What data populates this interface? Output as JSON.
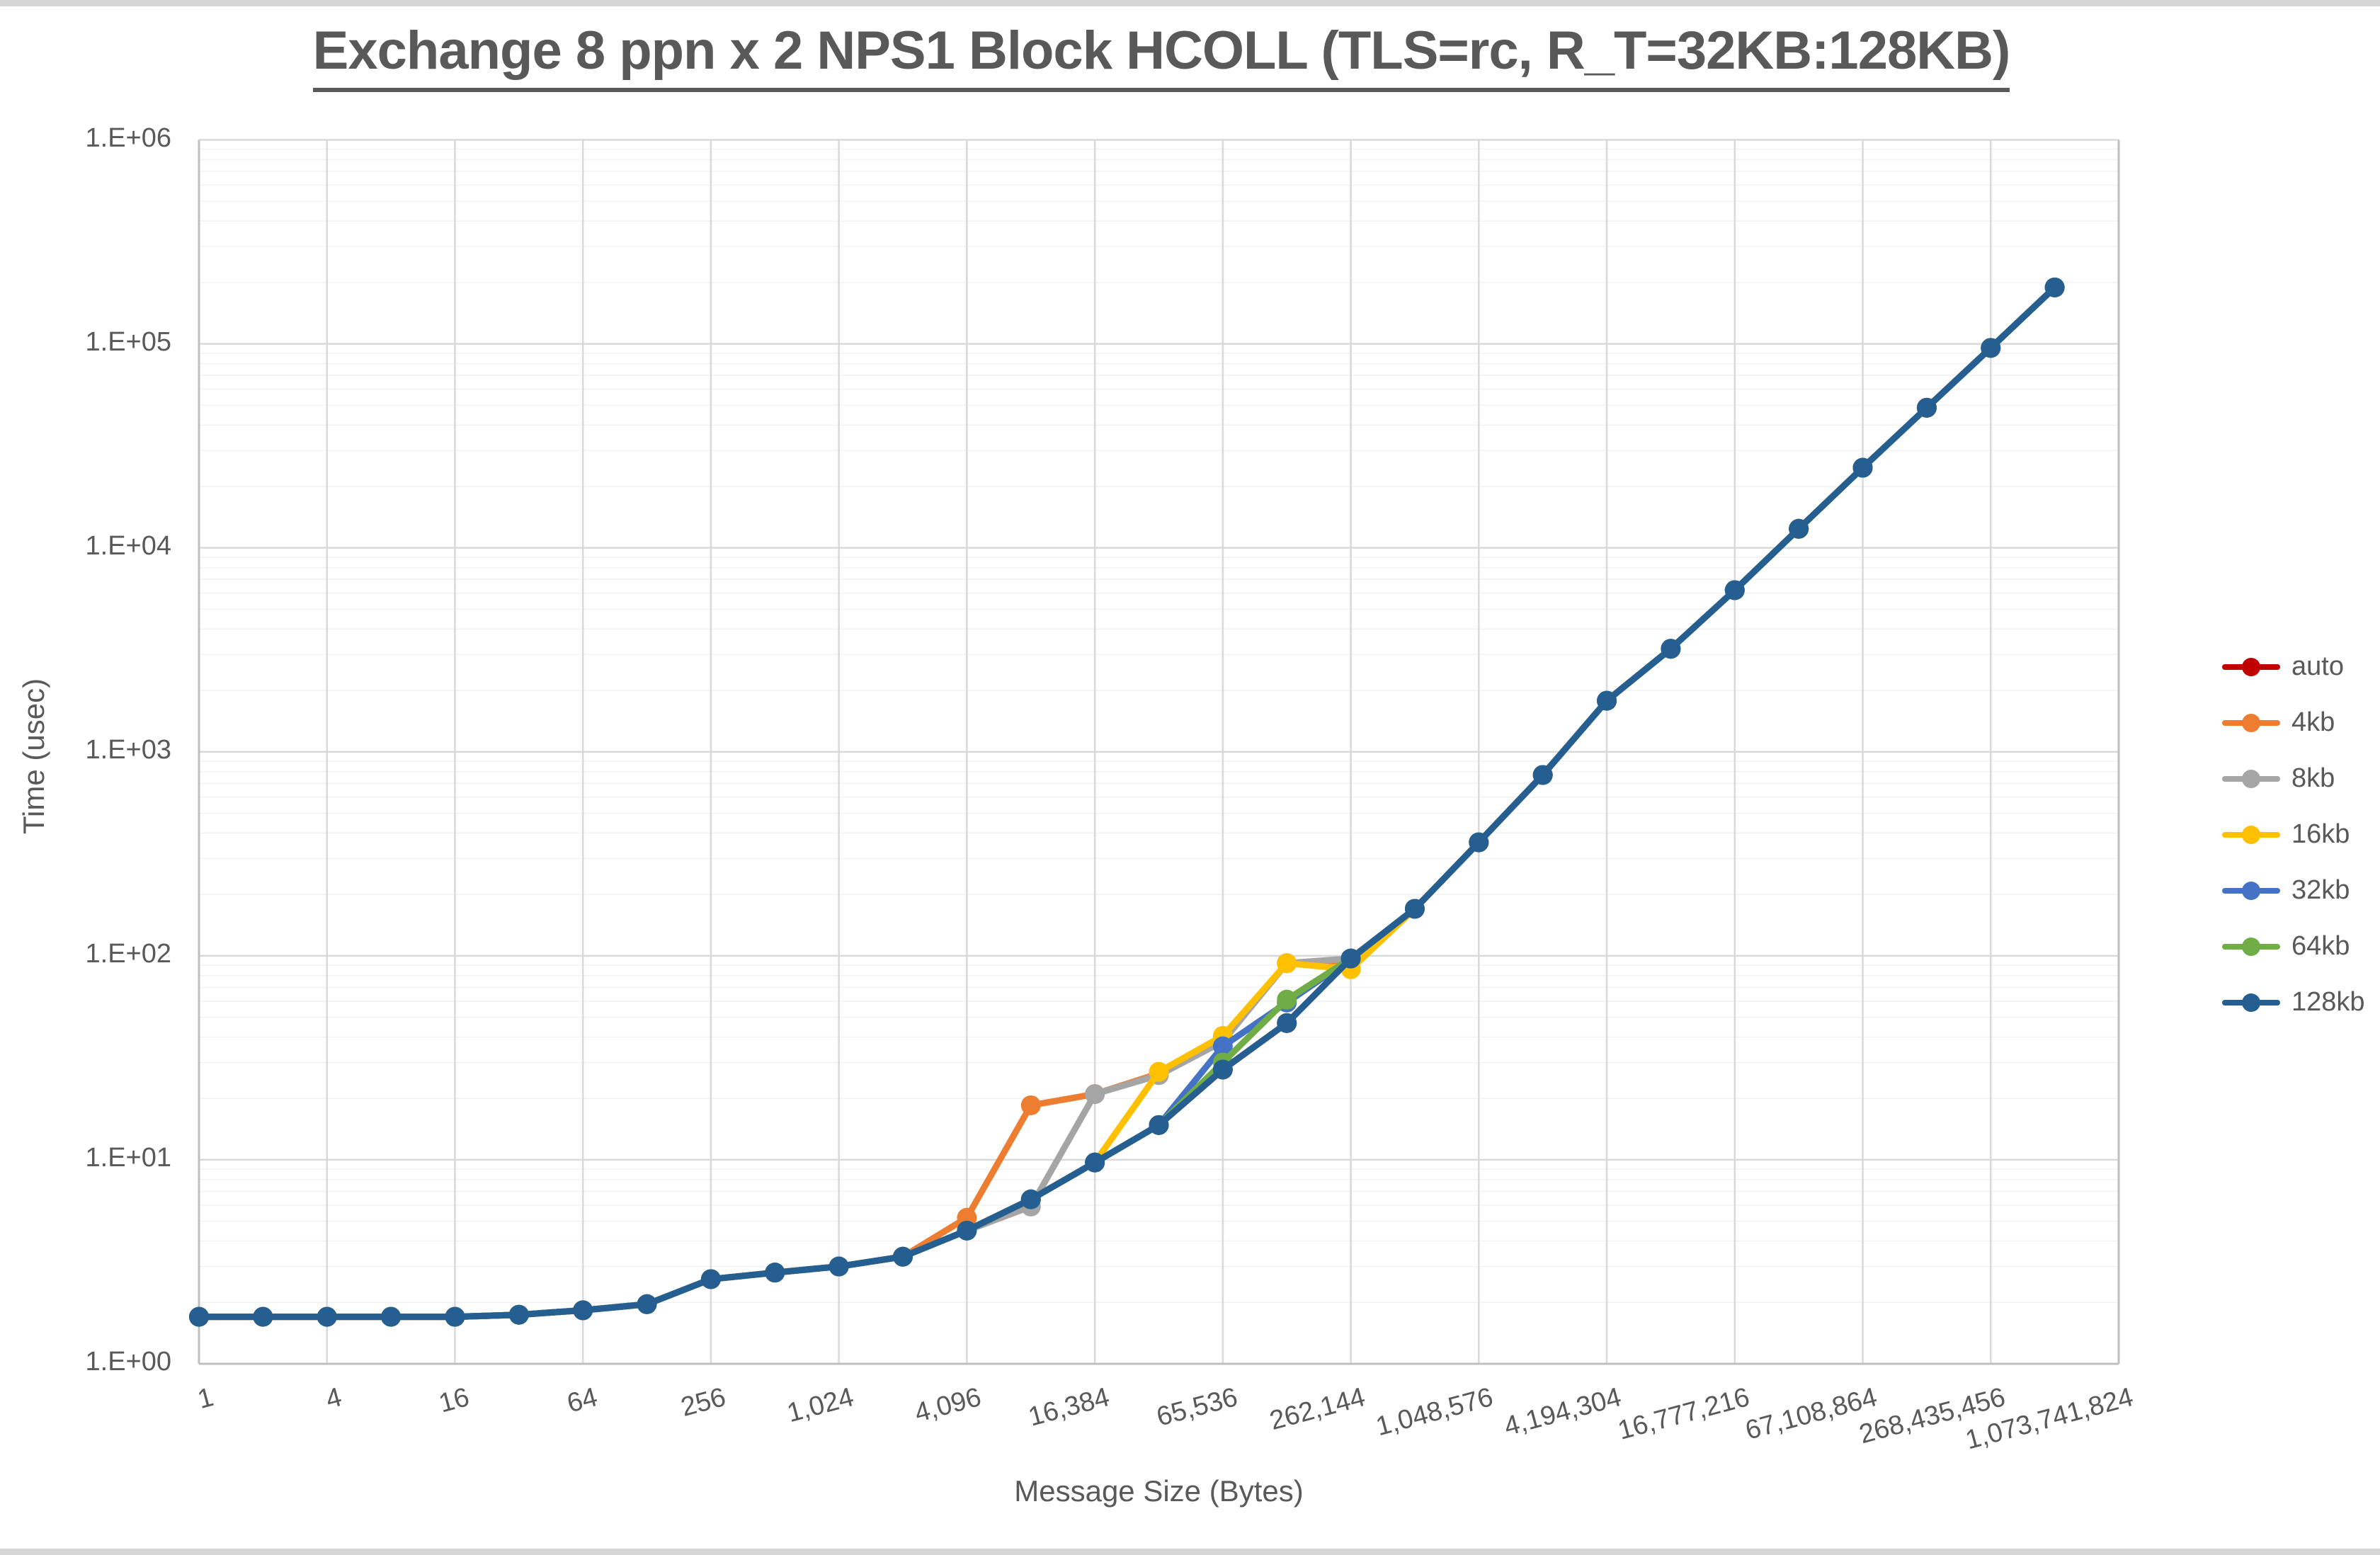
{
  "chart_data": {
    "type": "line",
    "title": "Exchange 8 ppn x 2 NPS1 Block HCOLL (TLS=rc, R_T=32KB:128KB)",
    "xlabel": "Message Size (Bytes)",
    "ylabel": "Time (usec)",
    "y_scale": "log10",
    "ylim": [
      1,
      1000000
    ],
    "y_tick_labels": [
      "1.E+00",
      "1.E+01",
      "1.E+02",
      "1.E+03",
      "1.E+04",
      "1.E+05",
      "1.E+06"
    ],
    "x_tick_labels": [
      "1",
      "4",
      "16",
      "64",
      "256",
      "1,024",
      "4,096",
      "16,384",
      "65,536",
      "262,144",
      "1,048,576",
      "4,194,304",
      "16,777,216",
      "67,108,864",
      "268,435,456",
      "1,073,741,824"
    ],
    "x_categories": [
      1,
      2,
      4,
      8,
      16,
      32,
      64,
      128,
      256,
      512,
      1024,
      2048,
      4096,
      8192,
      16384,
      32768,
      65536,
      131072,
      262144,
      524288,
      1048576,
      2097152,
      4194304,
      8388608,
      16777216,
      33554432,
      67108864,
      134217728,
      268435456,
      536870912
    ],
    "grid": "major-and-log-minor",
    "legend_position": "right",
    "series": [
      {
        "name": "auto",
        "color": "#C00000",
        "values": [
          1.7,
          1.7,
          1.7,
          1.7,
          1.7,
          1.74,
          1.83,
          1.96,
          2.6,
          2.8,
          3.0,
          3.35,
          4.5,
          6.4,
          9.7,
          14.8,
          27.7,
          46.8,
          97,
          170,
          360,
          770,
          1780,
          3200,
          6200,
          12400,
          24700,
          48600,
          95500,
          189000
        ]
      },
      {
        "name": "4kb",
        "color": "#ED7D31",
        "values": [
          1.7,
          1.7,
          1.7,
          1.7,
          1.7,
          1.74,
          1.83,
          1.96,
          2.6,
          2.8,
          3.0,
          3.35,
          5.2,
          18.5,
          21,
          26.5,
          40,
          92,
          95,
          170,
          360,
          770,
          1780,
          3200,
          6200,
          12400,
          24700,
          48600,
          95500,
          189000
        ]
      },
      {
        "name": "8kb",
        "color": "#A5A5A5",
        "values": [
          1.7,
          1.7,
          1.7,
          1.7,
          1.7,
          1.74,
          1.83,
          1.96,
          2.6,
          2.8,
          3.0,
          3.35,
          4.5,
          5.9,
          21,
          26,
          38,
          92,
          97,
          170,
          360,
          770,
          1780,
          3200,
          6200,
          12400,
          24700,
          48600,
          95500,
          189000
        ]
      },
      {
        "name": "16kb",
        "color": "#FFC000",
        "values": [
          1.7,
          1.7,
          1.7,
          1.7,
          1.7,
          1.74,
          1.83,
          1.96,
          2.6,
          2.8,
          3.0,
          3.35,
          4.5,
          6.4,
          9.7,
          27,
          40.5,
          92,
          86,
          170,
          360,
          770,
          1780,
          3200,
          6200,
          12400,
          24700,
          48600,
          95500,
          189000
        ]
      },
      {
        "name": "32kb",
        "color": "#4472C4",
        "values": [
          1.7,
          1.7,
          1.7,
          1.7,
          1.7,
          1.74,
          1.83,
          1.96,
          2.6,
          2.8,
          3.0,
          3.35,
          4.5,
          6.4,
          9.7,
          14.8,
          36,
          59,
          97,
          170,
          360,
          770,
          1780,
          3200,
          6200,
          12400,
          24700,
          48600,
          95500,
          189000
        ]
      },
      {
        "name": "64kb",
        "color": "#70AD47",
        "values": [
          1.7,
          1.7,
          1.7,
          1.7,
          1.7,
          1.74,
          1.83,
          1.96,
          2.6,
          2.8,
          3.0,
          3.35,
          4.5,
          6.4,
          9.7,
          14.8,
          30,
          61,
          97,
          170,
          360,
          770,
          1780,
          3200,
          6200,
          12400,
          24700,
          48600,
          95500,
          189000
        ]
      },
      {
        "name": "128kb",
        "color": "#255E91",
        "values": [
          1.7,
          1.7,
          1.7,
          1.7,
          1.7,
          1.74,
          1.83,
          1.96,
          2.6,
          2.8,
          3.0,
          3.35,
          4.5,
          6.4,
          9.7,
          14.8,
          27.7,
          46.8,
          97,
          170,
          360,
          770,
          1780,
          3200,
          6200,
          12400,
          24700,
          48600,
          95500,
          189000
        ]
      }
    ]
  },
  "style_colors": {
    "major_grid": "#D9D9D9",
    "minor_grid": "#F2F2F2",
    "axis_line": "#BFBFBF",
    "text": "#595959",
    "chrome_strip": "#D6D6D6"
  }
}
